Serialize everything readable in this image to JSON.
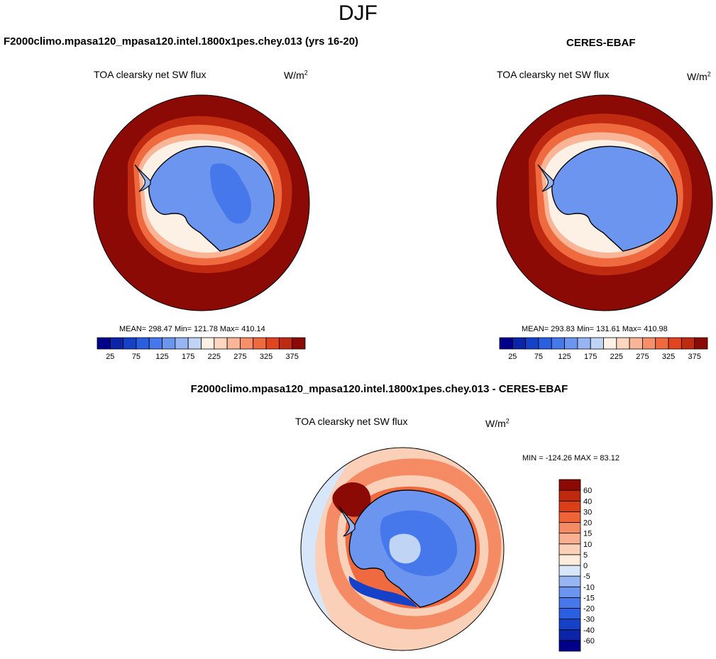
{
  "figure": {
    "season": "DJF",
    "units_base": "W/m",
    "units_exp": "2"
  },
  "panels": [
    {
      "title": "F2000climo.mpasa120_mpasa120.intel.1800x1pes.chey.013 (yrs 16-20)",
      "variable": "TOA clearsky net SW flux",
      "stats_text": "MEAN= 298.47  Min= 121.78  Max= 410.14"
    },
    {
      "title": "CERES-EBAF",
      "variable": "TOA clearsky net SW flux",
      "stats_text": "MEAN= 293.83  Min= 131.61  Max= 410.98"
    },
    {
      "title": "F2000climo.mpasa120_mpasa120.intel.1800x1pes.chey.013 - CERES-EBAF",
      "variable": "TOA clearsky net SW flux",
      "stats_text": "MIN = -124.26 MAX =  83.12"
    }
  ],
  "chart_data": [
    {
      "type": "heatmap",
      "projection": "south-polar-stereographic",
      "title": "F2000climo.mpasa120_mpasa120.intel.1800x1pes.chey.013 (yrs 16-20)",
      "variable": "TOA clearsky net SW flux",
      "units": "W/m2",
      "mean": 298.47,
      "min": 121.78,
      "max": 410.14,
      "colorbar": {
        "orientation": "horizontal",
        "levels": [
          25,
          50,
          75,
          100,
          125,
          150,
          175,
          200,
          225,
          250,
          275,
          300,
          325,
          350,
          375
        ],
        "tick_labels": [
          "25",
          "75",
          "125",
          "175",
          "225",
          "275",
          "325",
          "375"
        ],
        "colors": [
          "#00008b",
          "#0b24a8",
          "#1540c8",
          "#2a5fe0",
          "#4678ec",
          "#6c95f0",
          "#97b4f3",
          "#c0d4f6",
          "#fdf0e4",
          "#fcd6bf",
          "#f9b596",
          "#f5906b",
          "#f06a40",
          "#e2441f",
          "#c02a10",
          "#8b0a05"
        ]
      }
    },
    {
      "type": "heatmap",
      "projection": "south-polar-stereographic",
      "title": "CERES-EBAF",
      "variable": "TOA clearsky net SW flux",
      "units": "W/m2",
      "mean": 293.83,
      "min": 131.61,
      "max": 410.98,
      "colorbar": {
        "orientation": "horizontal",
        "levels": [
          25,
          50,
          75,
          100,
          125,
          150,
          175,
          200,
          225,
          250,
          275,
          300,
          325,
          350,
          375
        ],
        "tick_labels": [
          "25",
          "75",
          "125",
          "175",
          "225",
          "275",
          "325",
          "375"
        ],
        "colors": [
          "#00008b",
          "#0b24a8",
          "#1540c8",
          "#2a5fe0",
          "#4678ec",
          "#6c95f0",
          "#97b4f3",
          "#c0d4f6",
          "#fdf0e4",
          "#fcd6bf",
          "#f9b596",
          "#f5906b",
          "#f06a40",
          "#e2441f",
          "#c02a10",
          "#8b0a05"
        ]
      }
    },
    {
      "type": "heatmap",
      "projection": "south-polar-stereographic",
      "title": "F2000climo.mpasa120_mpasa120.intel.1800x1pes.chey.013 - CERES-EBAF",
      "variable": "TOA clearsky net SW flux",
      "units": "W/m2",
      "min": -124.26,
      "max": 83.12,
      "colorbar": {
        "orientation": "vertical",
        "levels": [
          -60,
          -40,
          -30,
          -20,
          -15,
          -10,
          -5,
          0,
          5,
          10,
          15,
          20,
          30,
          40,
          60
        ],
        "tick_labels": [
          "-60",
          "-40",
          "-30",
          "-20",
          "-15",
          "-10",
          "-5",
          "0",
          "5",
          "10",
          "15",
          "20",
          "30",
          "40",
          "60"
        ],
        "colors": [
          "#00008b",
          "#0b24a8",
          "#1540c8",
          "#2a5fe0",
          "#4678ec",
          "#6c95f0",
          "#97b4f3",
          "#d7e6f8",
          "#fdebdc",
          "#fbd0b8",
          "#f8b090",
          "#f48b64",
          "#ee6436",
          "#dc3f18",
          "#bf2a0e",
          "#8b0a05"
        ]
      }
    }
  ]
}
